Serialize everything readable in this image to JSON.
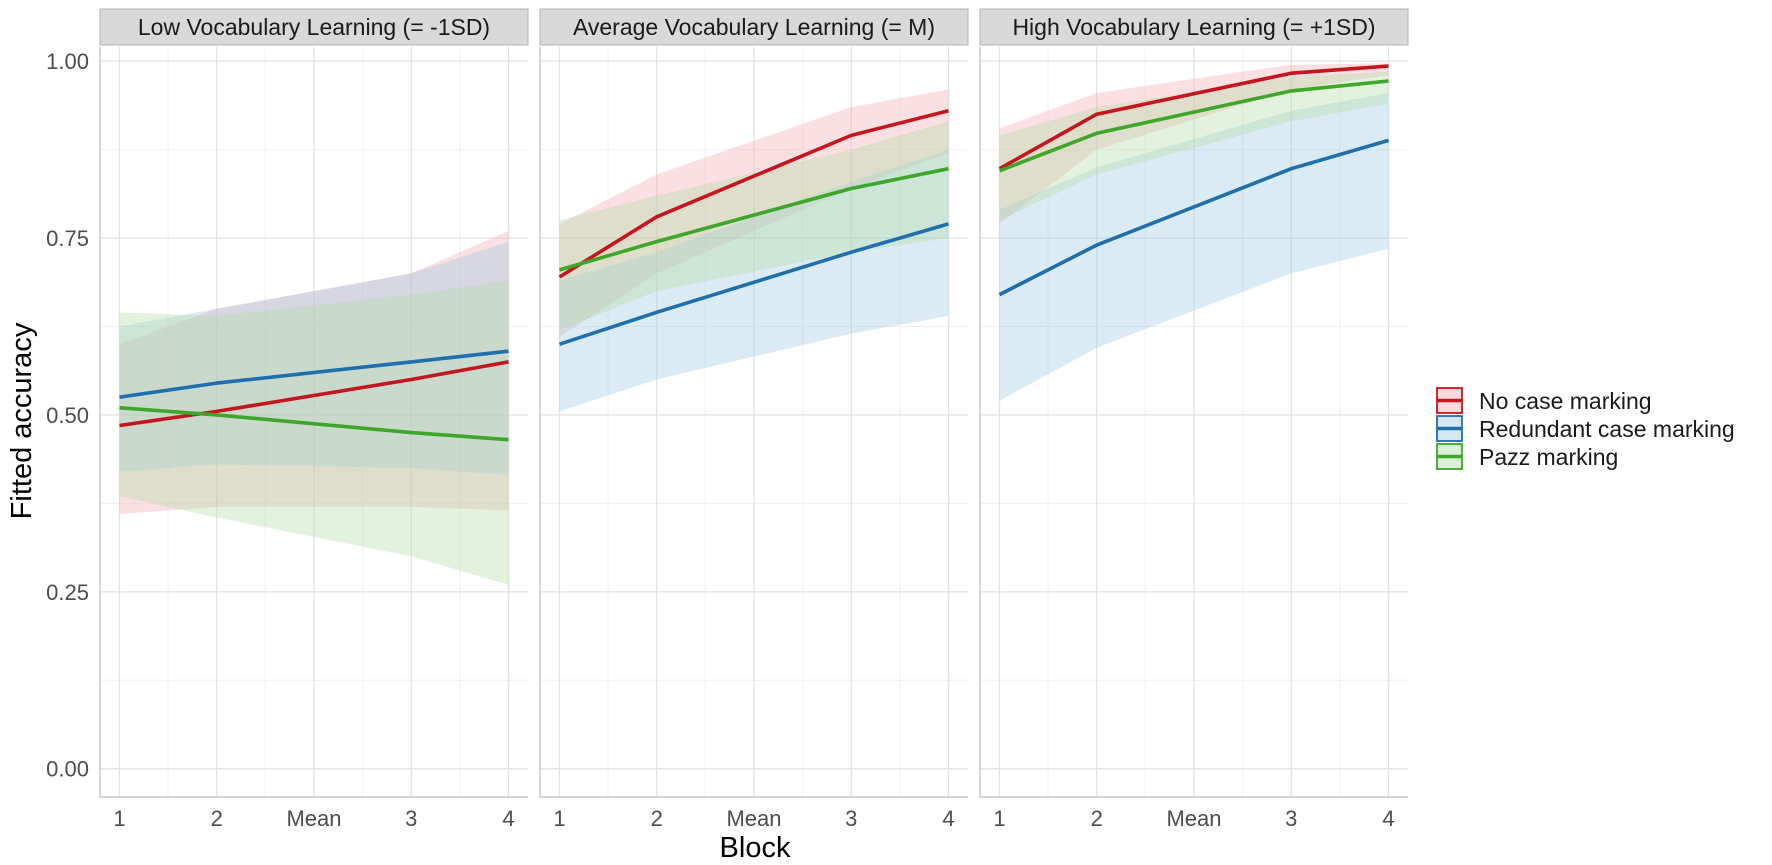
{
  "chart_data": {
    "type": "line",
    "xlabel": "Block",
    "ylabel": "Fitted accuracy",
    "x_categories": [
      "1",
      "2",
      "Mean",
      "3",
      "4"
    ],
    "x_positions": [
      1,
      2,
      3,
      4,
      5
    ],
    "ylim": [
      -0.04,
      1.02
    ],
    "y_ticks": [
      0.0,
      0.25,
      0.5,
      0.75,
      1.0
    ],
    "y_tick_labels": [
      "0.00",
      "0.25",
      "0.50",
      "0.75",
      "1.00"
    ],
    "grid": true,
    "legend_position": "right",
    "legend": [
      {
        "name": "No case marking",
        "color": "#c4161c"
      },
      {
        "name": "Redundant case marking",
        "color": "#1f6fad"
      },
      {
        "name": "Pazz marking",
        "color": "#3ea62a"
      }
    ],
    "band_colors": [
      "#f4aab4",
      "#9ecbe6",
      "#b2dea6"
    ],
    "panels": [
      {
        "title": "Low Vocabulary Learning (= -1SD)",
        "series": [
          {
            "name": "No case marking",
            "x": [
              1,
              2,
              4,
              5
            ],
            "y": [
              0.485,
              0.505,
              0.55,
              0.575
            ],
            "lower": [
              0.36,
              0.37,
              0.37,
              0.365
            ],
            "upper": [
              0.6,
              0.65,
              0.7,
              0.76
            ]
          },
          {
            "name": "Redundant case marking",
            "x": [
              1,
              2,
              4,
              5
            ],
            "y": [
              0.525,
              0.545,
              0.575,
              0.59
            ],
            "lower": [
              0.42,
              0.43,
              0.425,
              0.415
            ],
            "upper": [
              0.625,
              0.65,
              0.7,
              0.745
            ]
          },
          {
            "name": "Pazz marking",
            "x": [
              1,
              2,
              4,
              5
            ],
            "y": [
              0.51,
              0.5,
              0.475,
              0.465
            ],
            "lower": [
              0.385,
              0.355,
              0.3,
              0.26
            ],
            "upper": [
              0.645,
              0.64,
              0.67,
              0.69
            ]
          }
        ]
      },
      {
        "title": "Average Vocabulary Learning (= M)",
        "series": [
          {
            "name": "No case marking",
            "x": [
              1,
              2,
              4,
              5
            ],
            "y": [
              0.695,
              0.78,
              0.895,
              0.93
            ],
            "lower": [
              0.61,
              0.7,
              0.82,
              0.87
            ],
            "upper": [
              0.77,
              0.84,
              0.935,
              0.96
            ]
          },
          {
            "name": "Redundant case marking",
            "x": [
              1,
              2,
              4,
              5
            ],
            "y": [
              0.6,
              0.645,
              0.73,
              0.77
            ],
            "lower": [
              0.505,
              0.55,
              0.615,
              0.64
            ],
            "upper": [
              0.69,
              0.73,
              0.83,
              0.875
            ]
          },
          {
            "name": "Pazz marking",
            "x": [
              1,
              2,
              4,
              5
            ],
            "y": [
              0.705,
              0.745,
              0.82,
              0.848
            ],
            "lower": [
              0.62,
              0.675,
              0.73,
              0.75
            ],
            "upper": [
              0.775,
              0.81,
              0.875,
              0.915
            ]
          }
        ]
      },
      {
        "title": "High Vocabulary Learning (= +1SD)",
        "series": [
          {
            "name": "No case marking",
            "x": [
              1,
              2,
              4,
              5
            ],
            "y": [
              0.848,
              0.925,
              0.983,
              0.993
            ],
            "lower": [
              0.77,
              0.875,
              0.96,
              0.98
            ],
            "upper": [
              0.905,
              0.955,
              0.995,
              0.997
            ]
          },
          {
            "name": "Redundant case marking",
            "x": [
              1,
              2,
              4,
              5
            ],
            "y": [
              0.67,
              0.74,
              0.848,
              0.888
            ],
            "lower": [
              0.52,
              0.595,
              0.7,
              0.735
            ],
            "upper": [
              0.79,
              0.85,
              0.93,
              0.955
            ]
          },
          {
            "name": "Pazz marking",
            "x": [
              1,
              2,
              4,
              5
            ],
            "y": [
              0.845,
              0.898,
              0.958,
              0.972
            ],
            "lower": [
              0.775,
              0.84,
              0.915,
              0.94
            ],
            "upper": [
              0.895,
              0.935,
              0.978,
              0.985
            ]
          }
        ]
      }
    ]
  }
}
